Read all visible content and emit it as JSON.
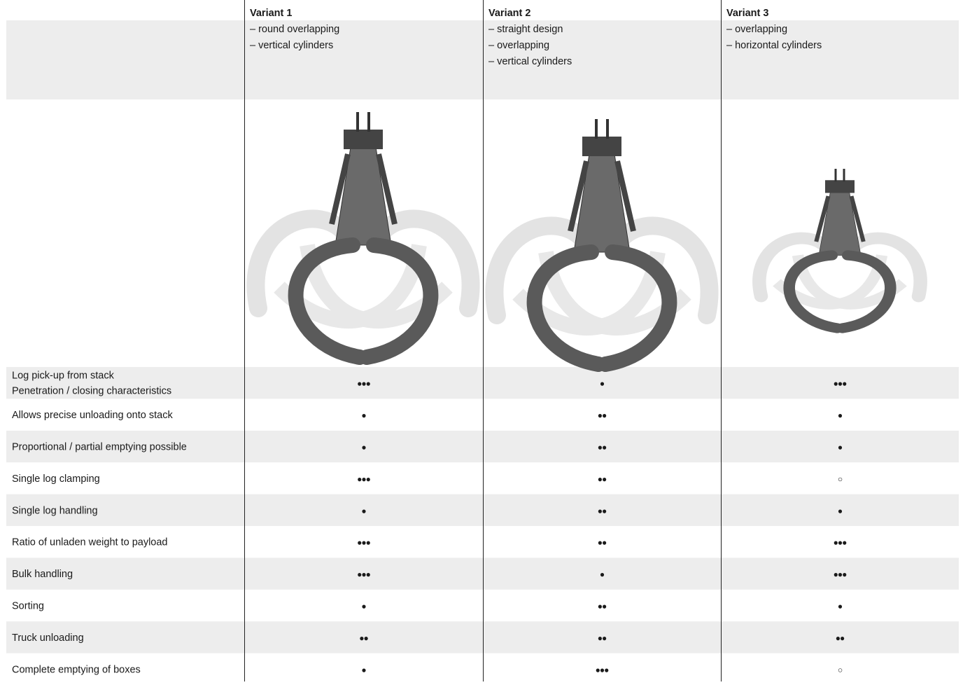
{
  "header": {
    "variants": [
      {
        "title": "Variant 1",
        "features": [
          "– round overlapping",
          "– vertical cylinders"
        ]
      },
      {
        "title": "Variant 2",
        "features": [
          "– straight design",
          "– overlapping",
          "– vertical cylinders"
        ]
      },
      {
        "title": "Variant 3",
        "features": [
          "– overlapping",
          "– horizontal cylinders"
        ]
      }
    ]
  },
  "table": {
    "rows": [
      {
        "label": [
          "Log pick-up from stack",
          "Penetration / closing characteristics"
        ],
        "ratings": [
          "●●●",
          "●",
          "●●●"
        ]
      },
      {
        "label": [
          "Allows precise unloading onto stack"
        ],
        "ratings": [
          "●",
          "●●",
          "●"
        ]
      },
      {
        "label": [
          "Proportional / partial emptying possible"
        ],
        "ratings": [
          "●",
          "●●",
          "●"
        ]
      },
      {
        "label": [
          "Single log clamping"
        ],
        "ratings": [
          "●●●",
          "●●",
          "○"
        ]
      },
      {
        "label": [
          "Single log handling"
        ],
        "ratings": [
          "●",
          "●●",
          "●"
        ]
      },
      {
        "label": [
          "Ratio of unladen weight to payload"
        ],
        "ratings": [
          "●●●",
          "●●",
          "●●●"
        ]
      },
      {
        "label": [
          "Bulk handling"
        ],
        "ratings": [
          "●●●",
          "●",
          "●●●"
        ]
      },
      {
        "label": [
          "Sorting"
        ],
        "ratings": [
          "●",
          "●●",
          "●"
        ]
      },
      {
        "label": [
          "Truck unloading"
        ],
        "ratings": [
          "●●",
          "●●",
          "●●"
        ]
      },
      {
        "label": [
          "Complete emptying of boxes"
        ],
        "ratings": [
          "●",
          "●●●",
          "○"
        ]
      }
    ]
  }
}
